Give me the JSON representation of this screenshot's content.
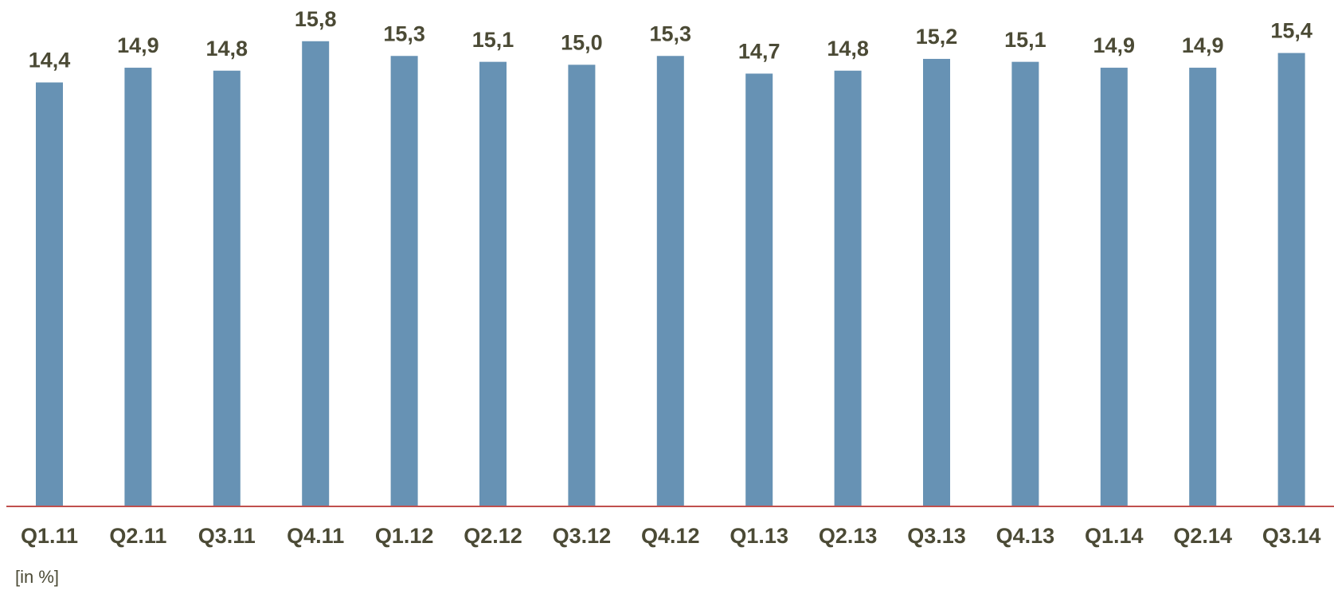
{
  "chart_data": {
    "type": "bar",
    "categories": [
      "Q1.11",
      "Q2.11",
      "Q3.11",
      "Q4.11",
      "Q1.12",
      "Q2.12",
      "Q3.12",
      "Q4.12",
      "Q1.13",
      "Q2.13",
      "Q3.13",
      "Q4.13",
      "Q1.14",
      "Q2.14",
      "Q3.14"
    ],
    "values": [
      14.4,
      14.9,
      14.8,
      15.8,
      15.3,
      15.1,
      15.0,
      15.3,
      14.7,
      14.8,
      15.2,
      15.1,
      14.9,
      14.9,
      15.4
    ],
    "value_labels": [
      "14,4",
      "14,9",
      "14,8",
      "15,8",
      "15,3",
      "15,1",
      "15,0",
      "15,3",
      "14,7",
      "14,8",
      "15,2",
      "15,1",
      "14,9",
      "14,9",
      "15,4"
    ],
    "color": "#6792b4",
    "ylim": [
      0,
      17.2
    ],
    "y_label": "[in %]"
  }
}
